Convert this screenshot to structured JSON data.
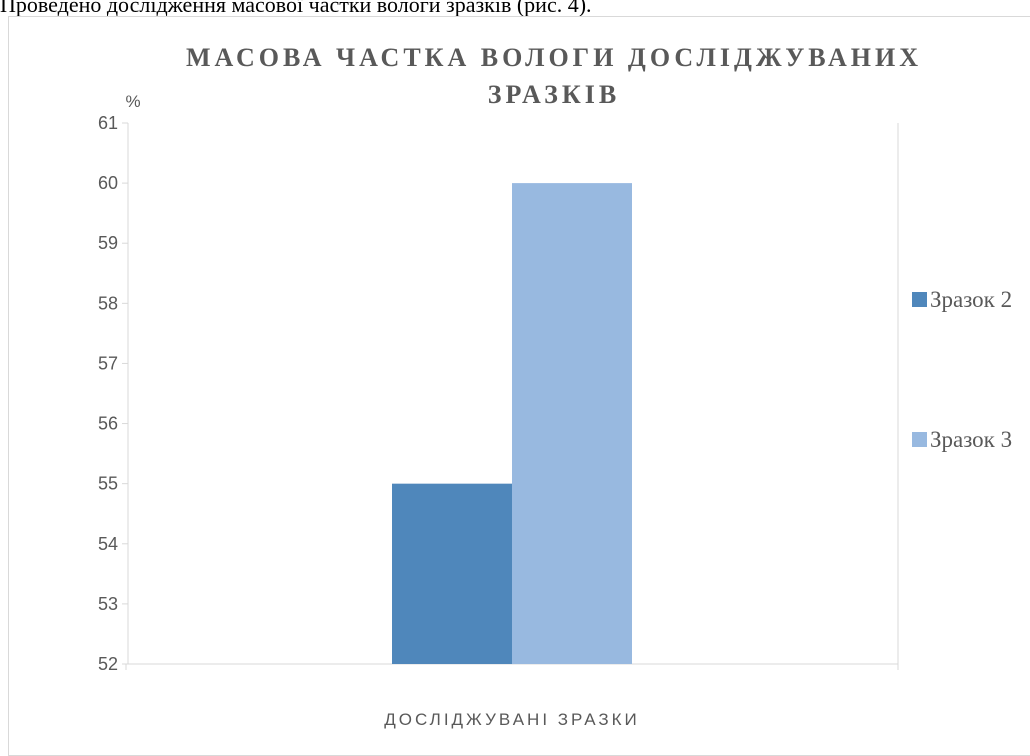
{
  "caption": "Проведено дослідження масової частки вологи зразків (рис. 4).",
  "colors": {
    "series1": "#4f87bb",
    "series2": "#98b9e0",
    "axis": "#d9d9d9",
    "text": "#595959",
    "title": "#595959"
  },
  "chart_data": {
    "type": "bar",
    "title_lines": [
      "МАСОВА ЧАСТКА ВОЛОГИ ДОСЛІДЖУВАНИХ",
      "ЗРАЗКІВ"
    ],
    "ylabel": "%",
    "xlabel": "ДОСЛІДЖУВАНІ ЗРАЗКИ",
    "categories": [
      ""
    ],
    "ylim": [
      52,
      61
    ],
    "yticks": [
      "52",
      "53",
      "54",
      "55",
      "56",
      "57",
      "58",
      "59",
      "60",
      "61"
    ],
    "series": [
      {
        "name": "Зразок 2",
        "values": [
          55
        ]
      },
      {
        "name": "Зразок 3",
        "values": [
          60
        ]
      }
    ],
    "legend_position": "right",
    "grid": false
  }
}
